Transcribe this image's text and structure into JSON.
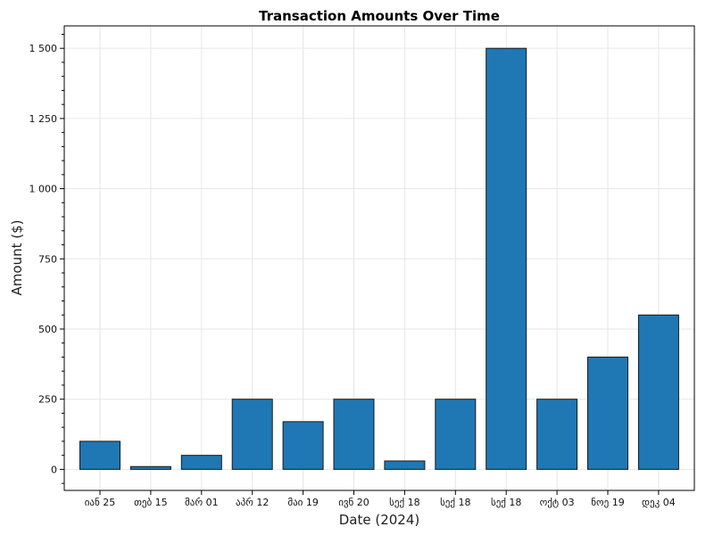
{
  "chart_data": {
    "type": "bar",
    "title": "Transaction Amounts Over Time",
    "xlabel": "Date (2024)",
    "ylabel": "Amount ($)",
    "categories": [
      "იან 25",
      "თებ 15",
      "მარ 01",
      "აპრ 12",
      "მაი 19",
      "ივნ 20",
      "სექ 18",
      "სექ 18",
      "სექ 18",
      "ოქტ 03",
      "ნოე 19",
      "დეკ 04"
    ],
    "values": [
      100,
      10,
      50,
      250,
      170,
      250,
      30,
      250,
      1500,
      250,
      400,
      550
    ],
    "ylim": [
      -75,
      1580
    ],
    "yticks": [
      0,
      250,
      500,
      750,
      1000,
      1250,
      1500
    ],
    "ytick_labels": [
      "0",
      "250",
      "500",
      "750",
      "1 000",
      "1 250",
      "1 500"
    ],
    "grid": true,
    "colors": {
      "bar": "#1f77b4"
    }
  }
}
